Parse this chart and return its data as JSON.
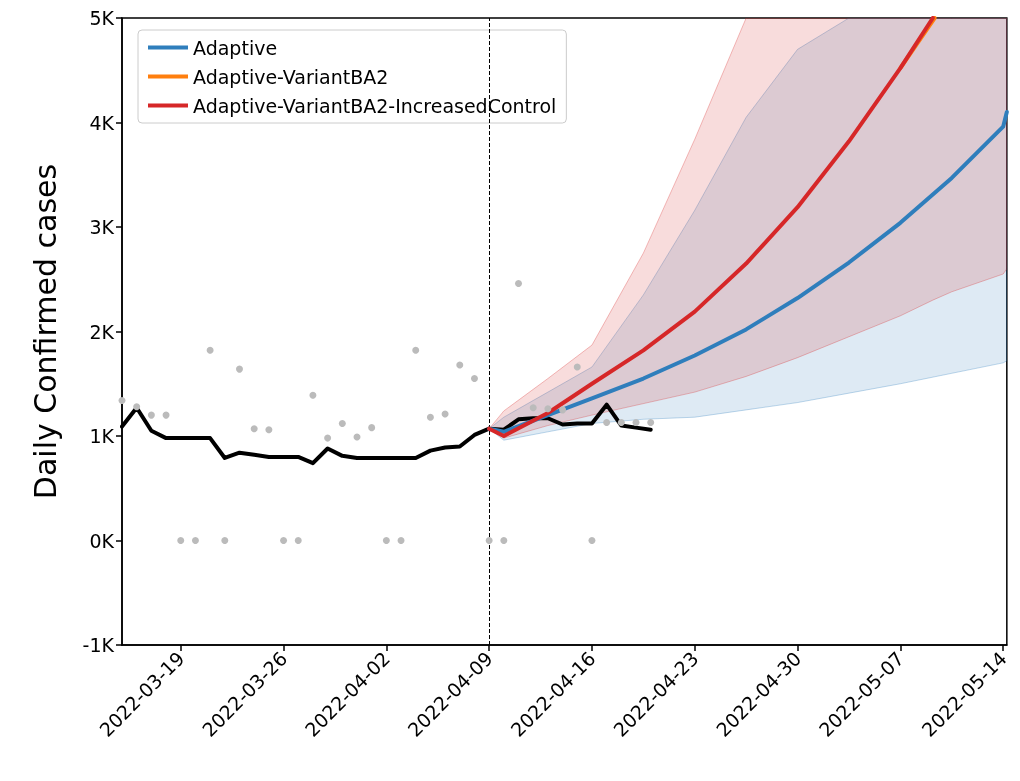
{
  "chart_data": {
    "type": "line",
    "ylabel": "Daily Confirmed cases",
    "legend": "top left",
    "grid": false,
    "xlim": [
      "2022-03-15",
      "2022-05-14T06:00"
    ],
    "xticks": [
      "2022-03-19",
      "2022-03-26",
      "2022-04-02",
      "2022-04-09",
      "2022-04-16",
      "2022-04-23",
      "2022-04-30",
      "2022-05-07",
      "2022-05-14"
    ],
    "ylim": [
      -1000,
      5000
    ],
    "yticks": [
      {
        "value": -1000,
        "label": "-1K"
      },
      {
        "value": 0,
        "label": "0K"
      },
      {
        "value": 1000,
        "label": "1K"
      },
      {
        "value": 2000,
        "label": "2K"
      },
      {
        "value": 3000,
        "label": "3K"
      },
      {
        "value": 4000,
        "label": "4K"
      },
      {
        "value": 5000,
        "label": "5K"
      }
    ],
    "ref_lines": [
      {
        "axis": "x",
        "value": "2022-04-09",
        "color": "#000000",
        "line_style": "dashed"
      }
    ],
    "series": [
      {
        "type": "scatter",
        "marker": "circle",
        "color": "#bbbbbb",
        "x": [
          "2022-03-15",
          "2022-03-16",
          "2022-03-17",
          "2022-03-18",
          "2022-03-19",
          "2022-03-20",
          "2022-03-21",
          "2022-03-22",
          "2022-03-23",
          "2022-03-24",
          "2022-03-25",
          "2022-03-26",
          "2022-03-27",
          "2022-03-28",
          "2022-03-29",
          "2022-03-30",
          "2022-03-31",
          "2022-04-01",
          "2022-04-02",
          "2022-04-03",
          "2022-04-04",
          "2022-04-05",
          "2022-04-06",
          "2022-04-07",
          "2022-04-08",
          "2022-04-09",
          "2022-04-10",
          "2022-04-11",
          "2022-04-12",
          "2022-04-13",
          "2022-04-14",
          "2022-04-15",
          "2022-04-16",
          "2022-04-17",
          "2022-04-18",
          "2022-04-19",
          "2022-04-20"
        ],
        "values": [
          1340,
          1280,
          1200,
          1200,
          0,
          0,
          1820,
          0,
          1640,
          1070,
          1060,
          0,
          0,
          1390,
          980,
          1120,
          990,
          1080,
          0,
          0,
          1820,
          1180,
          1210,
          1680,
          1550,
          0,
          0,
          2460,
          1270,
          1260,
          1250,
          1660,
          0,
          1130,
          1130,
          1130,
          1130
        ]
      },
      {
        "color": "#000000",
        "x": [
          "2022-03-15",
          "2022-03-16",
          "2022-03-17",
          "2022-03-18",
          "2022-03-19",
          "2022-03-20",
          "2022-03-21",
          "2022-03-22",
          "2022-03-23",
          "2022-03-24",
          "2022-03-25",
          "2022-03-26",
          "2022-03-27",
          "2022-03-28",
          "2022-03-29",
          "2022-03-30",
          "2022-03-31",
          "2022-04-01",
          "2022-04-02",
          "2022-04-03",
          "2022-04-04",
          "2022-04-05",
          "2022-04-06",
          "2022-04-07",
          "2022-04-08",
          "2022-04-09",
          "2022-04-10",
          "2022-04-11",
          "2022-04-12",
          "2022-04-13",
          "2022-04-14",
          "2022-04-15",
          "2022-04-16",
          "2022-04-17",
          "2022-04-18",
          "2022-04-19",
          "2022-04-20"
        ],
        "values": [
          1090,
          1270,
          1050,
          980,
          980,
          980,
          980,
          790,
          840,
          820,
          800,
          800,
          800,
          740,
          880,
          810,
          790,
          790,
          790,
          790,
          790,
          860,
          890,
          900,
          1010,
          1070,
          1060,
          1160,
          1170,
          1170,
          1110,
          1120,
          1120,
          1300,
          1100,
          1080,
          1060
        ]
      },
      {
        "name": "Adaptive",
        "color": "#2f7ebc",
        "x": [
          "2022-04-09",
          "2022-04-10",
          "2022-04-13",
          "2022-04-16",
          "2022-04-19T12:00",
          "2022-04-23",
          "2022-04-26T12:00",
          "2022-04-30",
          "2022-05-03T12:00",
          "2022-05-07",
          "2022-05-10T12:00",
          "2022-05-14",
          "2022-05-14T06:00"
        ],
        "values": [
          1070,
          1040,
          1200,
          1360,
          1550,
          1770,
          2020,
          2320,
          2660,
          3040,
          3470,
          3960,
          4100
        ],
        "upper": [
          1070,
          1180,
          1420,
          1660,
          2350,
          3160,
          4050,
          4700,
          5000,
          5000,
          5000,
          5000,
          5000
        ],
        "lower": [
          1070,
          960,
          1040,
          1120,
          1160,
          1180,
          1250,
          1320,
          1410,
          1500,
          1600,
          1700,
          1720
        ]
      },
      {
        "name": "Adaptive-VariantBA2",
        "color": "#ff7f0e",
        "x": [
          "2022-05-07",
          "2022-05-09T08:00"
        ],
        "values": [
          4520,
          5000
        ]
      },
      {
        "name": "Adaptive-VariantBA2-IncreasedControl",
        "color": "#d62728",
        "x": [
          "2022-04-09",
          "2022-04-10",
          "2022-04-13",
          "2022-04-16",
          "2022-04-19T12:00",
          "2022-04-23",
          "2022-04-26T12:00",
          "2022-04-30",
          "2022-05-03T12:00",
          "2022-05-07",
          "2022-05-09T05:00",
          "2022-05-10T12:00",
          "2022-05-14",
          "2022-05-14T06:00"
        ],
        "values": [
          1070,
          1000,
          1220,
          1500,
          1820,
          2190,
          2650,
          3190,
          3820,
          4520,
          5000,
          null,
          null,
          null
        ],
        "upper": [
          1070,
          1240,
          1550,
          1870,
          2750,
          3840,
          5000,
          5000,
          5000,
          5000,
          5000,
          5000,
          5000,
          5000
        ],
        "lower": [
          1070,
          980,
          1100,
          1200,
          1310,
          1420,
          1570,
          1750,
          1950,
          2150,
          2300,
          2380,
          2550,
          2600
        ]
      }
    ]
  }
}
